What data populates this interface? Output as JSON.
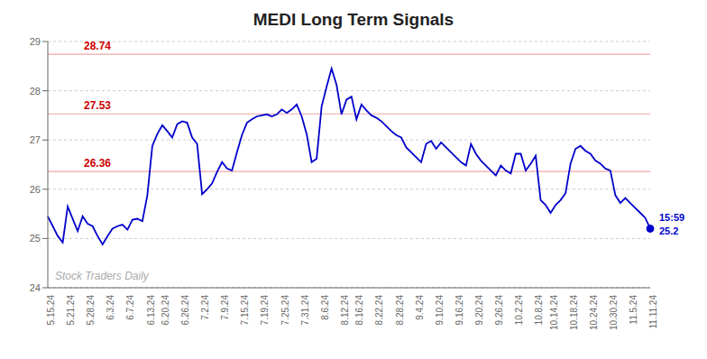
{
  "chart_data": {
    "type": "line",
    "title": "MEDI Long Term Signals",
    "categories": [
      "5.15.24",
      null,
      null,
      null,
      "5.21.24",
      null,
      null,
      null,
      "5.28.24",
      null,
      null,
      null,
      "6.3.24",
      null,
      null,
      null,
      "6.7.24",
      null,
      null,
      null,
      "6.13.24",
      null,
      null,
      "6.20.24",
      null,
      null,
      null,
      "6.26.24",
      null,
      null,
      null,
      "7.2.24",
      null,
      null,
      null,
      "7.9.24",
      null,
      null,
      null,
      "7.15.24",
      null,
      null,
      null,
      "7.19.24",
      null,
      null,
      null,
      "7.25.24",
      null,
      null,
      null,
      "7.31.24",
      null,
      null,
      null,
      "8.6.24",
      null,
      null,
      null,
      "8.12.24",
      null,
      null,
      "8.16.24",
      null,
      null,
      null,
      "8.22.24",
      null,
      null,
      null,
      "8.28.24",
      null,
      null,
      null,
      "9.4.24",
      null,
      null,
      null,
      "9.10.24",
      null,
      null,
      null,
      "9.16.24",
      null,
      null,
      null,
      "9.20.24",
      null,
      null,
      null,
      "9.26.24",
      null,
      null,
      null,
      "10.2.24",
      null,
      null,
      null,
      "10.8.24",
      null,
      null,
      "10.14.24",
      null,
      null,
      null,
      "10.18.24",
      null,
      null,
      null,
      "10.24.24",
      null,
      null,
      null,
      "10.30.24",
      null,
      null,
      null,
      "11.5.24",
      null,
      null,
      null,
      "11.11.24"
    ],
    "values": [
      25.45,
      25.25,
      25.05,
      24.92,
      25.65,
      25.4,
      25.15,
      25.45,
      25.3,
      25.25,
      25.05,
      24.88,
      25.05,
      25.2,
      25.25,
      25.28,
      25.18,
      25.38,
      25.4,
      25.35,
      25.88,
      26.88,
      27.12,
      27.3,
      27.18,
      27.05,
      27.32,
      27.38,
      27.35,
      27.05,
      26.92,
      25.9,
      26.0,
      26.12,
      26.35,
      26.55,
      26.42,
      26.38,
      26.75,
      27.1,
      27.35,
      27.42,
      27.48,
      27.5,
      27.52,
      27.48,
      27.52,
      27.62,
      27.55,
      27.62,
      27.72,
      27.48,
      27.12,
      26.55,
      26.62,
      27.68,
      28.08,
      28.45,
      28.12,
      27.52,
      27.82,
      27.88,
      27.42,
      27.72,
      27.6,
      27.5,
      27.45,
      27.38,
      27.28,
      27.18,
      27.1,
      27.05,
      26.85,
      26.75,
      26.65,
      26.55,
      26.92,
      26.98,
      26.82,
      26.95,
      26.85,
      26.75,
      26.65,
      26.55,
      26.48,
      26.92,
      26.72,
      26.58,
      26.48,
      26.38,
      26.28,
      26.48,
      26.38,
      26.32,
      26.72,
      26.72,
      26.38,
      26.52,
      26.68,
      25.78,
      25.68,
      25.52,
      25.68,
      25.78,
      25.92,
      26.52,
      26.82,
      26.88,
      26.78,
      26.72,
      26.58,
      26.52,
      26.42,
      26.38,
      25.88,
      25.72,
      25.82,
      25.72,
      25.62,
      25.52,
      25.42,
      25.2
    ],
    "color": "#0000cc",
    "ylim": [
      24,
      29
    ],
    "yticks": [
      24,
      25,
      26,
      27,
      28,
      29
    ],
    "grid": true,
    "signal_lines": [
      {
        "value": 28.74,
        "label": "28.74",
        "color": "#cc0000"
      },
      {
        "value": 27.53,
        "label": "27.53",
        "color": "#cc0000"
      },
      {
        "value": 26.36,
        "label": "26.36",
        "color": "#cc0000"
      }
    ],
    "annotations": [
      "Stock Traders Daily"
    ],
    "end_labels": [
      "15:59",
      "25.2"
    ]
  }
}
